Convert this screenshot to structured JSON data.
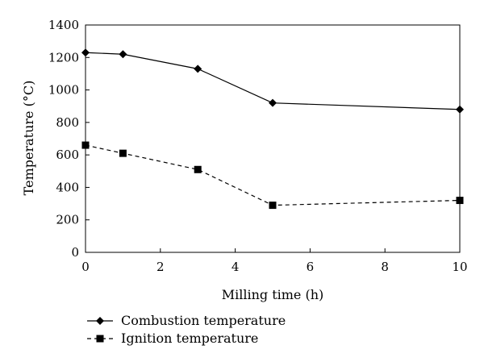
{
  "chart_data": {
    "type": "line",
    "xlabel": "Milling time (h)",
    "ylabel": "Temperature (°C)",
    "xlim": [
      0,
      10
    ],
    "ylim": [
      0,
      1400
    ],
    "xticks": [
      "0",
      "2",
      "4",
      "6",
      "8",
      "10"
    ],
    "yticks": [
      "0",
      "200",
      "400",
      "600",
      "800",
      "1000",
      "1200",
      "1400"
    ],
    "grid": false,
    "legend_position": "bottom-left",
    "series": [
      {
        "name": "Combustion temperature",
        "marker": "diamond",
        "line_style": "solid",
        "points": [
          {
            "x": 0,
            "y": 1230
          },
          {
            "x": 1,
            "y": 1220
          },
          {
            "x": 3,
            "y": 1130
          },
          {
            "x": 5,
            "y": 920
          },
          {
            "x": 10,
            "y": 880
          }
        ]
      },
      {
        "name": "Ignition temperature",
        "marker": "square",
        "line_style": "dashed",
        "points": [
          {
            "x": 0,
            "y": 660
          },
          {
            "x": 1,
            "y": 610
          },
          {
            "x": 3,
            "y": 510
          },
          {
            "x": 5,
            "y": 290
          },
          {
            "x": 10,
            "y": 320
          }
        ]
      }
    ]
  }
}
